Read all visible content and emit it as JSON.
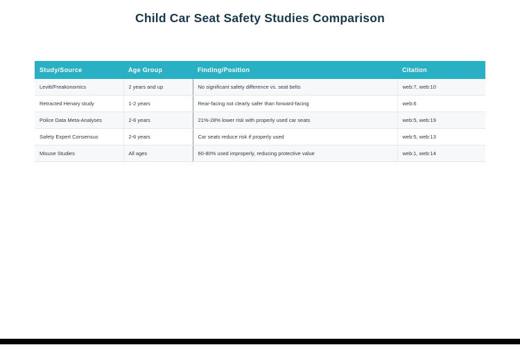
{
  "page": {
    "title": "Child Car Seat Safety Studies Comparison"
  },
  "colors": {
    "title_text": "#17394a",
    "header_bg": "#29b0c4",
    "header_text": "#ffffff",
    "row_stripe": "#f7f8fa",
    "cell_text": "#33383d",
    "bottom_bar": "#050505"
  },
  "table": {
    "columns": [
      "Study/Source",
      "Age Group",
      "Finding/Position",
      "Citation"
    ],
    "rows": [
      {
        "study": "Levitt/Freakonomics",
        "age_group": "2 years and up",
        "finding": "No significant safety difference vs. seat belts",
        "citation": "web:7, web:10"
      },
      {
        "study": "Retracted Henary study",
        "age_group": "1-2 years",
        "finding": "Rear-facing not clearly safer than forward-facing",
        "citation": "web:6"
      },
      {
        "study": "Police Data Meta-Analyses",
        "age_group": "2-6 years",
        "finding": "21%-28% lower risk with properly used car seats",
        "citation": "web:5, web:19"
      },
      {
        "study": "Safety Expert Consensus",
        "age_group": "2-6 years",
        "finding": "Car seats reduce risk if properly used",
        "citation": "web:5, web:13"
      },
      {
        "study": "Misuse Studies",
        "age_group": "All ages",
        "finding": "60-80% used improperly, reducing protective value",
        "citation": "web:1, web:14"
      }
    ]
  }
}
